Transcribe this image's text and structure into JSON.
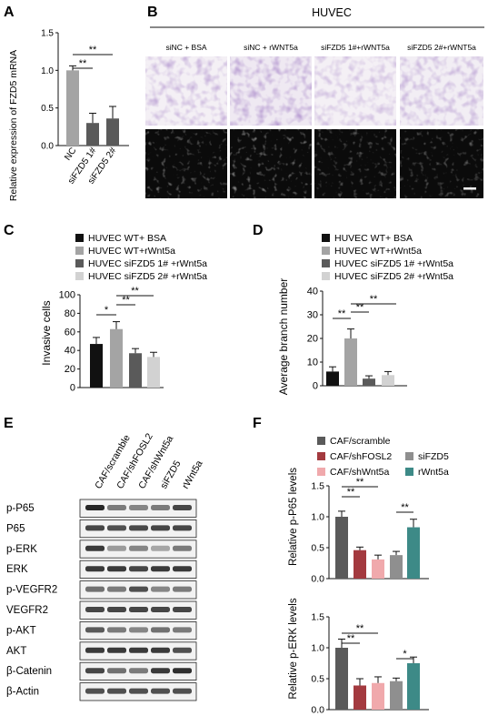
{
  "panels": {
    "A": "A",
    "B": "B",
    "C": "C",
    "D": "D",
    "E": "E",
    "F": "F"
  },
  "colors": {
    "black": "#111111",
    "darkgray": "#5a5a5a",
    "gray": "#a4a4a4",
    "lightgray": "#d2d2d2",
    "darkred": "#a33a3f",
    "pink": "#f0a9ac",
    "teal": "#3d8a87",
    "midgray": "#8f8f8f"
  },
  "chart_data": [
    {
      "id": "A",
      "type": "bar",
      "ylabel": "Relative expression of FZD5 mRNA",
      "categories": [
        "NC",
        "siFZD5 1#",
        "siFZD5 2#"
      ],
      "values": [
        1.0,
        0.3,
        0.36
      ],
      "errors": [
        0.06,
        0.13,
        0.16
      ],
      "ylim": [
        0,
        1.5
      ],
      "yticks": [
        "0.0",
        "0.5",
        "1.0",
        "1.5"
      ],
      "significance": [
        "**",
        "**"
      ]
    },
    {
      "id": "B",
      "type": "image-grid",
      "title": "HUVEC",
      "columns": [
        "siNC + BSA",
        "siNC + rWNT5a",
        "siFZD5 1#+rWNT5a",
        "siFZD5 2#+rWNT5a"
      ]
    },
    {
      "id": "C",
      "type": "bar",
      "ylabel": "Invasive cells",
      "legend": [
        "HUVEC WT+ BSA",
        "HUVEC WT+rWnt5a",
        "HUVEC siFZD5 1# +rWnt5a",
        "HUVEC siFZD5 2# +rWnt5a"
      ],
      "values": [
        47,
        63,
        37,
        33
      ],
      "errors": [
        7,
        8,
        5,
        5
      ],
      "ylim": [
        0,
        100
      ],
      "yticks": [
        "0",
        "20",
        "40",
        "60",
        "80",
        "100"
      ],
      "significance": [
        "*",
        "**",
        "**"
      ]
    },
    {
      "id": "D",
      "type": "bar",
      "ylabel": "Average branch number",
      "legend": [
        "HUVEC WT+ BSA",
        "HUVEC WT+rWnt5a",
        "HUVEC siFZD5 1# +rWnt5a",
        "HUVEC siFZD5 2# +rWnt5a"
      ],
      "values": [
        6,
        20,
        3,
        4.5
      ],
      "errors": [
        2,
        4,
        1.2,
        1.5
      ],
      "ylim": [
        0,
        40
      ],
      "yticks": [
        "0",
        "10",
        "20",
        "30",
        "40"
      ],
      "significance": [
        "**",
        "**",
        "**"
      ]
    },
    {
      "id": "E",
      "type": "blot",
      "lanes": [
        "CAF/scramble",
        "CAF/shFOSL2",
        "CAF/shWnt5a",
        "siFZD5",
        "rWnt5a"
      ],
      "rows": [
        "p-P65",
        "P65",
        "p-ERK",
        "ERK",
        "p-VEGFR2",
        "VEGFR2",
        "p-AKT",
        "AKT",
        "β-Catenin",
        "β-Actin"
      ]
    },
    {
      "id": "F",
      "type": "bar",
      "legend": [
        "CAF/scramble",
        "CAF/shFOSL2",
        "siFZD5",
        "CAF/shWnt5a",
        "rWnt5a"
      ],
      "groups": [
        {
          "ylabel": "Relative p-P65 levels",
          "values": [
            1.0,
            0.46,
            0.31,
            0.38,
            0.83
          ],
          "errors": [
            0.09,
            0.05,
            0.07,
            0.06,
            0.13
          ],
          "ylim": [
            0,
            1.5
          ],
          "yticks": [
            "0.0",
            "0.5",
            "1.0",
            "1.5"
          ],
          "significance": [
            "**",
            "**",
            "**"
          ]
        },
        {
          "ylabel": "Relative p-ERK levels",
          "values": [
            1.0,
            0.39,
            0.43,
            0.46,
            0.75
          ],
          "errors": [
            0.14,
            0.11,
            0.1,
            0.05,
            0.1
          ],
          "ylim": [
            0,
            1.5
          ],
          "yticks": [
            "0.0",
            "0.5",
            "1.0",
            "1.5"
          ],
          "significance": [
            "**",
            "**",
            "*"
          ]
        }
      ]
    }
  ]
}
